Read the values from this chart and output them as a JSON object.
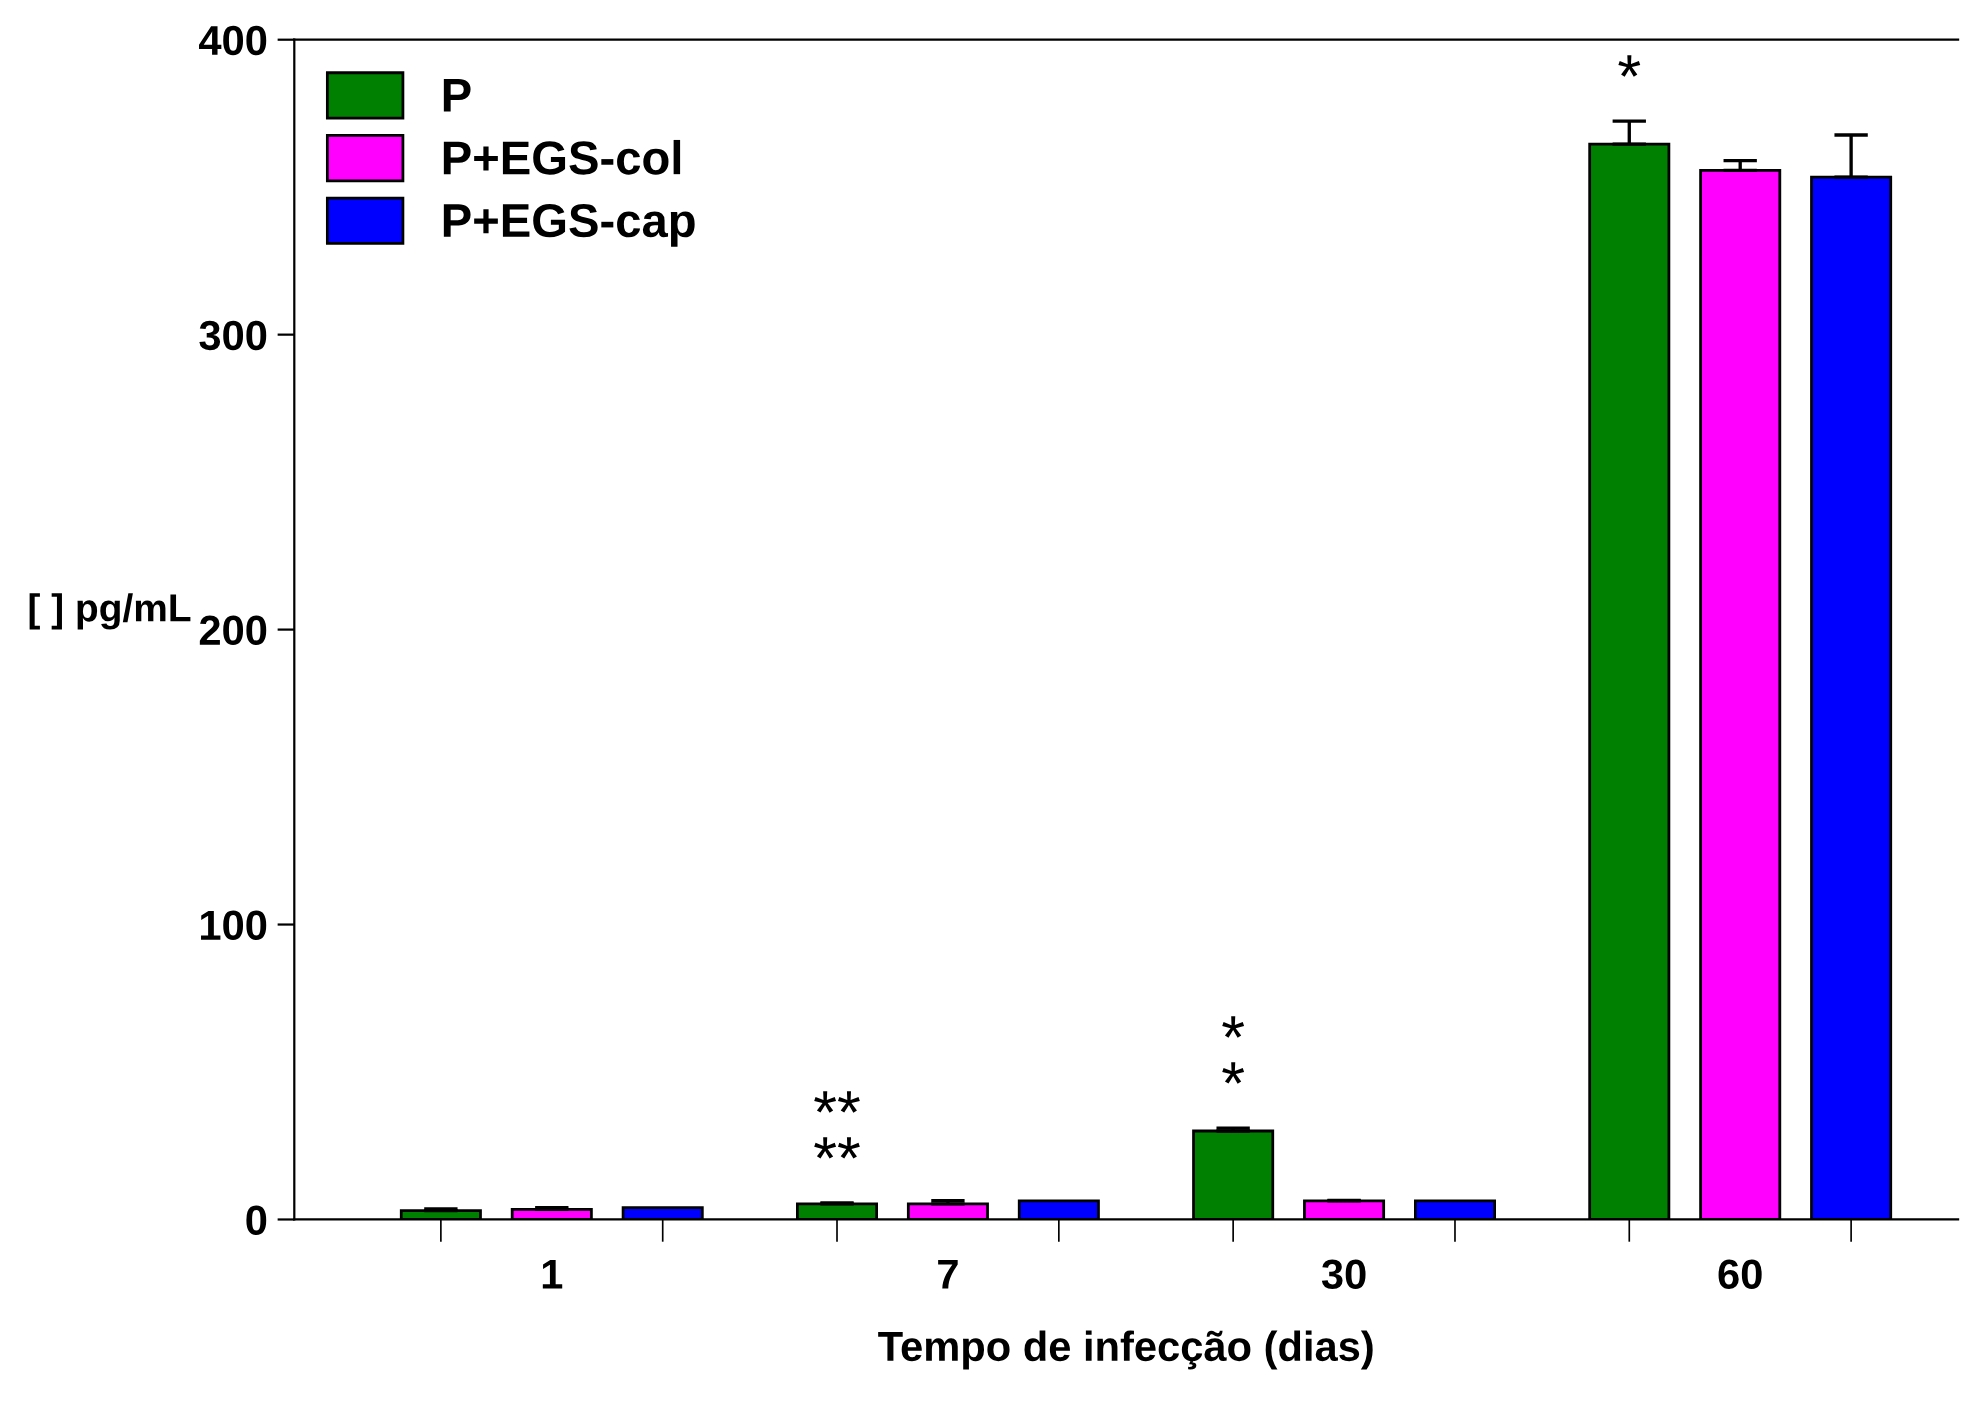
{
  "chart_data": {
    "type": "bar",
    "xlabel": "Tempo de infecção (dias)",
    "ylabel": "[ ] pg/mL",
    "categories": [
      "1",
      "7",
      "30",
      "60"
    ],
    "series": [
      {
        "name": "P",
        "color": "#008000",
        "values": [
          3,
          5.3,
          30,
          364.6
        ],
        "errors": [
          [
            3,
            3.6
          ],
          [
            5.3,
            5.6
          ],
          [
            30,
            31
          ],
          [
            364.6,
            372.4
          ]
        ]
      },
      {
        "name": "P+EGS-col",
        "color": "#ff00ff",
        "values": [
          3.4,
          5.3,
          6.3,
          355.7
        ],
        "errors": [
          [
            3.4,
            4
          ],
          [
            5.3,
            6.4
          ],
          [
            6.3,
            6.5
          ],
          [
            355.7,
            359
          ]
        ]
      },
      {
        "name": "P+EGS-cap",
        "color": "#0000ff",
        "values": [
          4,
          6.3,
          6.3,
          353.4
        ],
        "errors": [
          null,
          null,
          null,
          [
            353.4,
            367.7
          ]
        ]
      }
    ],
    "ylim": [
      0,
      400
    ],
    "yticks": [
      0,
      100,
      200,
      300,
      400
    ],
    "annotations": [
      "**\n**",
      "*\n*",
      "*"
    ],
    "legend": "top left",
    "grid": false
  }
}
